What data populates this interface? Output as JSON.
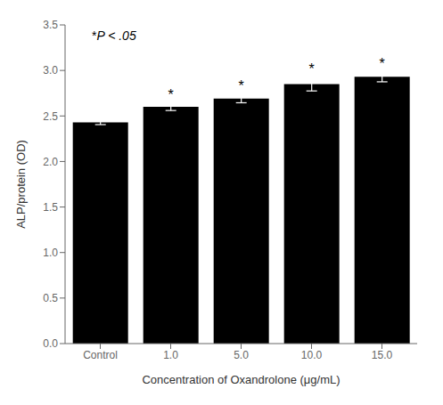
{
  "chart_data": {
    "type": "bar",
    "categories": [
      "Control",
      "1.0",
      "5.0",
      "10.0",
      "15.0"
    ],
    "values": [
      2.43,
      2.6,
      2.69,
      2.85,
      2.93
    ],
    "errors": [
      0.025,
      0.04,
      0.045,
      0.075,
      0.055
    ],
    "bar_annotations": [
      null,
      "*",
      "*",
      "*",
      "*"
    ],
    "annotation": "*P < .05",
    "color": "#000000",
    "ylim": [
      0,
      3.5
    ],
    "yticks": [
      {
        "value": 0,
        "label": "0.0"
      },
      0.5,
      {
        "value": 1,
        "label": "1.0"
      },
      1.5,
      {
        "value": 2,
        "label": "2.0"
      },
      2.5,
      {
        "value": 3,
        "label": "3.0"
      },
      3.5
    ],
    "ylabel": "ALP/protein (OD)",
    "xlabel": "Concentration of Oxandrolone (μg/mL)",
    "grid": false
  }
}
